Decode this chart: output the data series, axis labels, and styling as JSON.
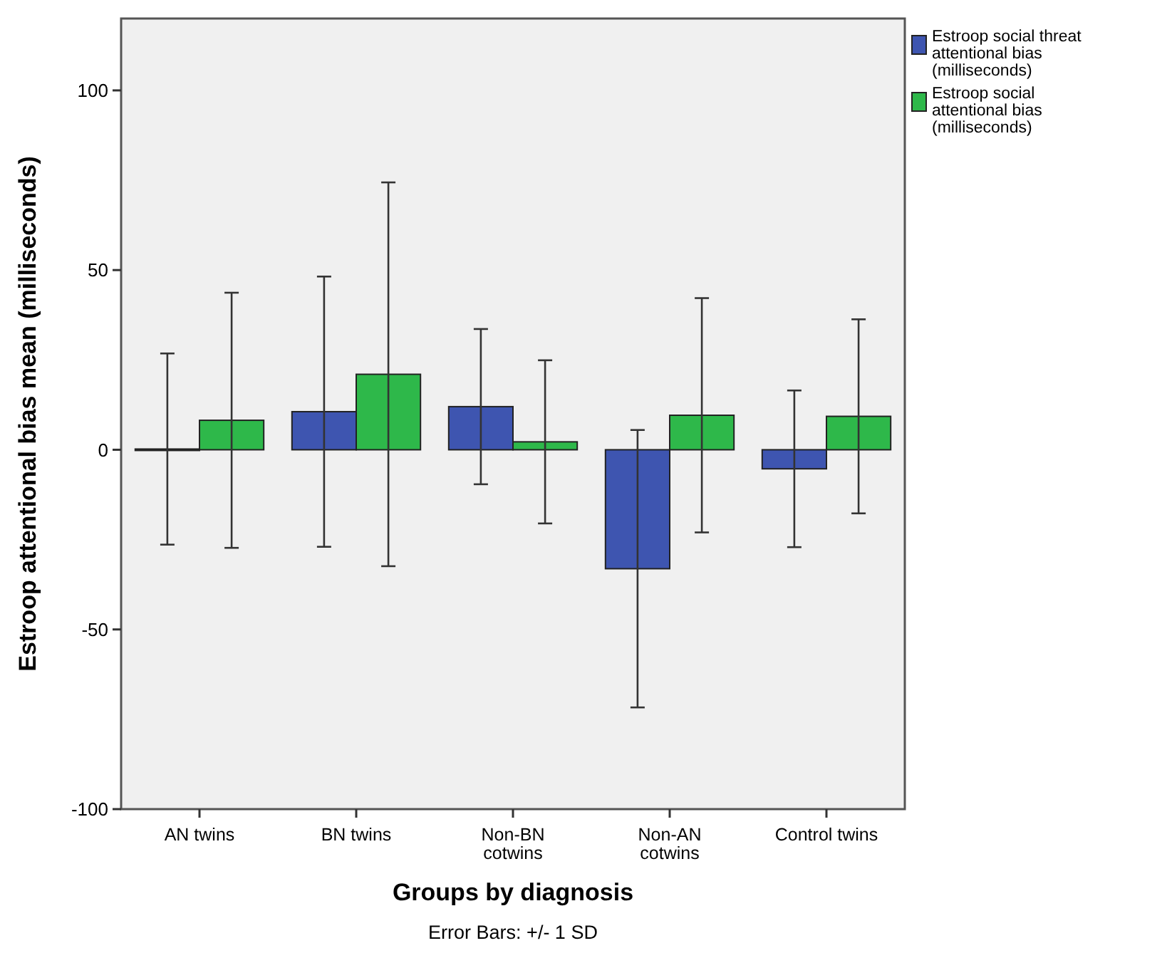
{
  "chart_data": {
    "type": "bar",
    "xlabel": "Groups by diagnosis",
    "ylabel": "Estroop attentional bias mean (milliseconds)",
    "categories": [
      "AN twins",
      "BN twins",
      "Non-BN cotwins",
      "Non-AN cotwins",
      "Control twins"
    ],
    "series": [
      {
        "name": "Estroop social threat attentional bias (milliseconds)",
        "color": "#3e55b0",
        "values": [
          0.2,
          10.6,
          12,
          -33.1,
          -5.3
        ],
        "errors": [
          26.6,
          37.6,
          21.6,
          38.6,
          21.8
        ]
      },
      {
        "name": "Estroop social attentional bias (milliseconds)",
        "color": "#2eb84a",
        "values": [
          8.2,
          21,
          2.2,
          9.6,
          9.3
        ],
        "errors": [
          35.5,
          53.4,
          22.7,
          32.6,
          27
        ]
      }
    ],
    "ylim": [
      -100,
      120
    ],
    "yticks": [
      -100,
      -50,
      0,
      50,
      100
    ],
    "grid": false,
    "legend": "top right",
    "annotations": [
      "Error Bars: +/- 1 SD"
    ]
  }
}
